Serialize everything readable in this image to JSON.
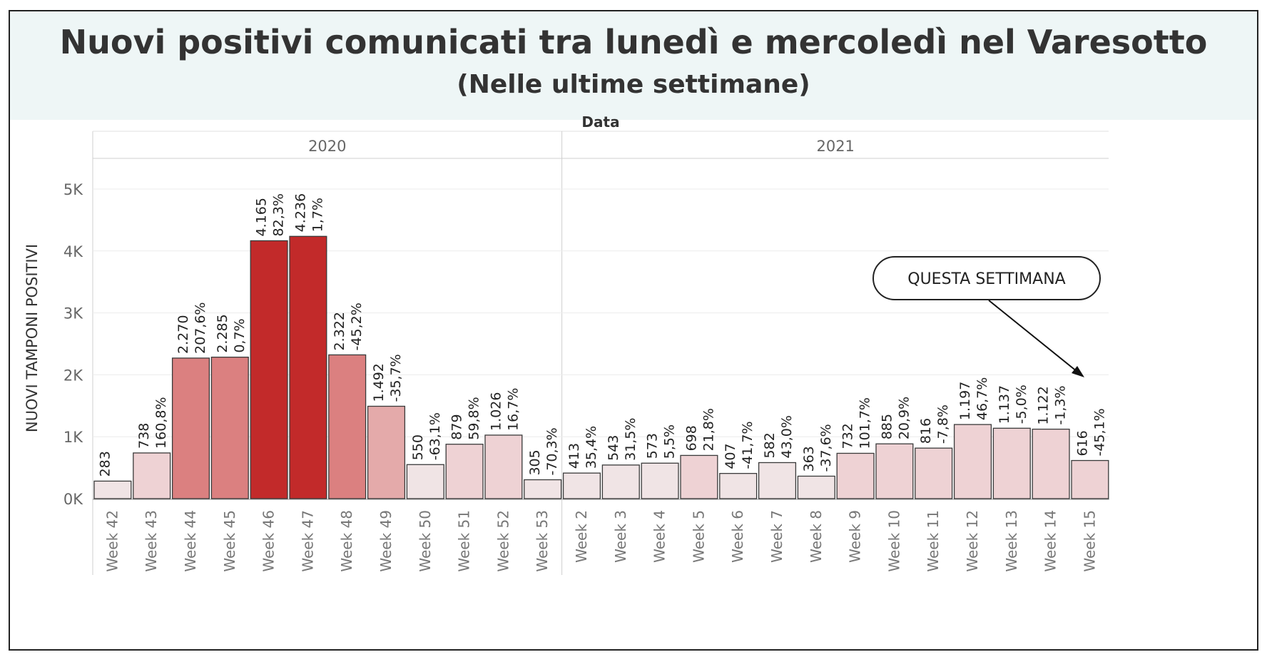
{
  "title": "Nuovi positivi comunicati tra lunedì e mercoledì nel Varesotto",
  "subtitle": "(Nelle ultime settimane)",
  "callout": "QUESTA SETTIMANA",
  "colors": {
    "header_bg": "#eef6f6",
    "bar_dark": "#c22a2a",
    "bar_mid": "#db8080",
    "bar_light": "#e4aaaa",
    "bar_pale": "#eed2d4",
    "bar_faint": "#f0e4e5"
  },
  "chart_data": {
    "type": "bar",
    "column_header": "Data",
    "ylabel": "NUOVI TAMPONI POSITIVI",
    "ylim": [
      0,
      5500
    ],
    "yticks": [
      0,
      1000,
      2000,
      3000,
      4000,
      5000
    ],
    "ytick_labels": [
      "0K",
      "1K",
      "2K",
      "3K",
      "4K",
      "5K"
    ],
    "grid": true,
    "groups": [
      {
        "year": "2020",
        "categories": [
          "Week 42",
          "Week 43",
          "Week 44",
          "Week 45",
          "Week 46",
          "Week 47",
          "Week 48",
          "Week 49",
          "Week 50",
          "Week 51",
          "Week 52",
          "Week 53"
        ],
        "values": [
          283,
          738,
          2270,
          2285,
          4165,
          4236,
          2322,
          1492,
          550,
          879,
          1026,
          305
        ],
        "value_labels": [
          "283",
          "738",
          "2.270",
          "2.285",
          "4.165",
          "4.236",
          "2.322",
          "1.492",
          "550",
          "879",
          "1.026",
          "305"
        ],
        "pct_labels": [
          "",
          "160,8%",
          "207,6%",
          "0,7%",
          "82,3%",
          "1,7%",
          "-45,2%",
          "-35,7%",
          "-63,1%",
          "59,8%",
          "16,7%",
          "-70,3%"
        ]
      },
      {
        "year": "2021",
        "categories": [
          "Week 2",
          "Week 3",
          "Week 4",
          "Week 5",
          "Week 6",
          "Week 7",
          "Week 8",
          "Week 9",
          "Week 10",
          "Week 11",
          "Week 12",
          "Week 13",
          "Week 14",
          "Week 15"
        ],
        "values": [
          413,
          543,
          573,
          698,
          407,
          582,
          363,
          732,
          885,
          816,
          1197,
          1137,
          1122,
          616
        ],
        "value_labels": [
          "413",
          "543",
          "573",
          "698",
          "407",
          "582",
          "363",
          "732",
          "885",
          "816",
          "1.197",
          "1.137",
          "1.122",
          "616"
        ],
        "pct_labels": [
          "35,4%",
          "31,5%",
          "5,5%",
          "21,8%",
          "-41,7%",
          "43,0%",
          "-37,6%",
          "101,7%",
          "20,9%",
          "-7,8%",
          "46,7%",
          "-5,0%",
          "-1,3%",
          "-45,1%"
        ]
      }
    ]
  }
}
